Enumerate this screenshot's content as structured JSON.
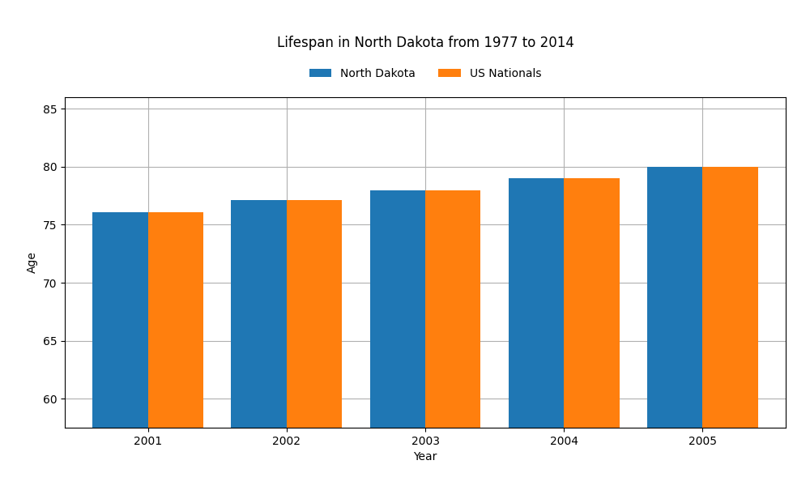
{
  "chart_data": {
    "type": "bar",
    "title": "Lifespan in North Dakota from 1977 to 2014",
    "x_label": "Year",
    "y_label": "Age",
    "categories": [
      "2001",
      "2002",
      "2003",
      "2004",
      "2005"
    ],
    "series": [
      {
        "name": "North Dakota",
        "values": [
          76.1,
          77.1,
          78.0,
          79.0,
          80.0
        ]
      },
      {
        "name": "US Nationals",
        "values": [
          76.1,
          77.1,
          78.0,
          79.0,
          80.0
        ]
      }
    ],
    "ylim": [
      57.5,
      86
    ],
    "yticks": [
      60,
      65,
      70,
      75,
      80,
      85
    ],
    "grid": true,
    "legend": "upper center"
  }
}
